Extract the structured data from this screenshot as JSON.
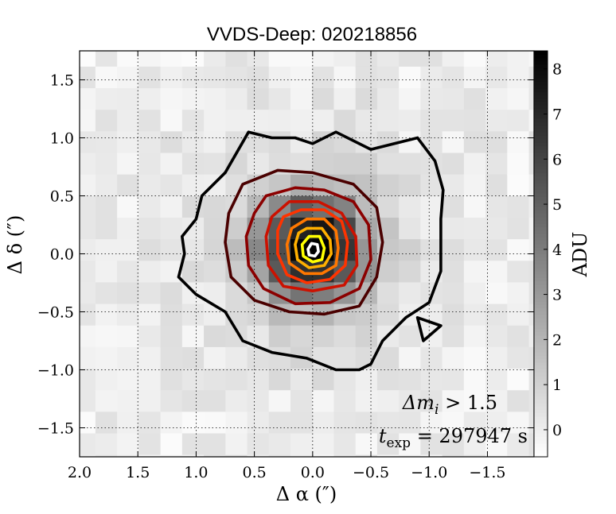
{
  "chart_data": {
    "type": "heatmap",
    "title": "VVDS-Deep: 020218856",
    "xlabel": "Δ α  (″)",
    "ylabel": "Δ δ  (″)",
    "xlim": [
      2.0,
      -1.9
    ],
    "ylim": [
      -1.75,
      1.75
    ],
    "x_ticks": [
      2.0,
      1.5,
      1.0,
      0.5,
      0.0,
      -0.5,
      -1.0,
      -1.5
    ],
    "x_tick_labels": [
      "2.0",
      "1.5",
      "1.0",
      "0.5",
      "0.0",
      "−0.5",
      "−1.0",
      "−1.5"
    ],
    "y_ticks": [
      1.5,
      1.0,
      0.5,
      0.0,
      -0.5,
      -1.0,
      -1.5
    ],
    "y_tick_labels": [
      "1.5",
      "1.0",
      "0.5",
      "0.0",
      "−0.5",
      "−1.0",
      "−1.5"
    ],
    "grid": true,
    "pixel_size_arcsec": 0.186,
    "colormap": "gray_r",
    "source_center": [
      0.0,
      0.05
    ],
    "colorbar": {
      "label": "ADU",
      "range": [
        -0.6,
        8.4
      ],
      "ticks": [
        0,
        1,
        2,
        3,
        4,
        5,
        6,
        7,
        8
      ],
      "tick_labels": [
        "0",
        "1",
        "2",
        "3",
        "4",
        "5",
        "6",
        "7",
        "8"
      ]
    },
    "contour_colors": [
      "#000000",
      "#4a0000",
      "#8b0000",
      "#cc1100",
      "#ff3300",
      "#ff7700",
      "#ffb000",
      "#ffff00",
      "#ffffff"
    ],
    "contours": [
      {
        "level": 1,
        "color": "#000000",
        "points": [
          [
            0.55,
            1.05
          ],
          [
            0.35,
            1.0
          ],
          [
            0.15,
            1.0
          ],
          [
            0.0,
            0.95
          ],
          [
            -0.2,
            1.05
          ],
          [
            -0.5,
            0.9
          ],
          [
            -0.9,
            1.0
          ],
          [
            -1.05,
            0.8
          ],
          [
            -1.12,
            0.55
          ],
          [
            -1.1,
            0.3
          ],
          [
            -1.1,
            -0.15
          ],
          [
            -1.0,
            -0.42
          ],
          [
            -0.8,
            -0.55
          ],
          [
            -0.6,
            -0.75
          ],
          [
            -0.5,
            -0.95
          ],
          [
            -0.4,
            -1.0
          ],
          [
            -0.2,
            -1.0
          ],
          [
            0.05,
            -0.9
          ],
          [
            0.35,
            -0.85
          ],
          [
            0.6,
            -0.75
          ],
          [
            0.75,
            -0.5
          ],
          [
            1.0,
            -0.35
          ],
          [
            1.15,
            -0.2
          ],
          [
            1.1,
            0.0
          ],
          [
            1.12,
            0.15
          ],
          [
            1.0,
            0.3
          ],
          [
            0.95,
            0.5
          ],
          [
            0.75,
            0.7
          ]
        ]
      },
      {
        "level": 2,
        "color": "#000000",
        "points": [
          [
            -0.9,
            -0.55
          ],
          [
            -1.1,
            -0.62
          ],
          [
            -0.95,
            -0.75
          ]
        ]
      },
      {
        "level": 3,
        "color": "#4a0000",
        "points": [
          [
            0.6,
            0.6
          ],
          [
            0.3,
            0.72
          ],
          [
            0.0,
            0.7
          ],
          [
            -0.35,
            0.6
          ],
          [
            -0.55,
            0.4
          ],
          [
            -0.6,
            0.1
          ],
          [
            -0.55,
            -0.2
          ],
          [
            -0.4,
            -0.45
          ],
          [
            -0.1,
            -0.52
          ],
          [
            0.2,
            -0.5
          ],
          [
            0.5,
            -0.4
          ],
          [
            0.7,
            -0.2
          ],
          [
            0.75,
            0.1
          ],
          [
            0.72,
            0.35
          ]
        ]
      },
      {
        "level": 4,
        "color": "#8b0000",
        "points": [
          [
            0.4,
            0.5
          ],
          [
            0.15,
            0.57
          ],
          [
            -0.1,
            0.55
          ],
          [
            -0.35,
            0.45
          ],
          [
            -0.48,
            0.25
          ],
          [
            -0.5,
            -0.05
          ],
          [
            -0.4,
            -0.3
          ],
          [
            -0.15,
            -0.42
          ],
          [
            0.15,
            -0.43
          ],
          [
            0.42,
            -0.3
          ],
          [
            0.55,
            -0.1
          ],
          [
            0.57,
            0.15
          ],
          [
            0.5,
            0.35
          ]
        ]
      },
      {
        "level": 5,
        "color": "#cc1100",
        "points": [
          [
            0.2,
            0.45
          ],
          [
            -0.05,
            0.45
          ],
          [
            -0.25,
            0.35
          ],
          [
            -0.37,
            0.15
          ],
          [
            -0.38,
            -0.1
          ],
          [
            -0.27,
            -0.27
          ],
          [
            0.0,
            -0.32
          ],
          [
            0.25,
            -0.28
          ],
          [
            0.38,
            -0.1
          ],
          [
            0.4,
            0.15
          ],
          [
            0.35,
            0.32
          ]
        ]
      },
      {
        "level": 6,
        "color": "#ff3300",
        "points": [
          [
            0.1,
            0.38
          ],
          [
            -0.1,
            0.38
          ],
          [
            -0.25,
            0.28
          ],
          [
            -0.3,
            0.1
          ],
          [
            -0.28,
            -0.1
          ],
          [
            -0.15,
            -0.22
          ],
          [
            0.05,
            -0.25
          ],
          [
            0.22,
            -0.18
          ],
          [
            0.3,
            0.0
          ],
          [
            0.3,
            0.2
          ],
          [
            0.25,
            0.32
          ]
        ]
      },
      {
        "level": 7,
        "color": "#ff7700",
        "points": [
          [
            0.05,
            0.3
          ],
          [
            -0.1,
            0.3
          ],
          [
            -0.2,
            0.2
          ],
          [
            -0.22,
            0.05
          ],
          [
            -0.2,
            -0.1
          ],
          [
            -0.08,
            -0.17
          ],
          [
            0.07,
            -0.17
          ],
          [
            0.2,
            -0.08
          ],
          [
            0.22,
            0.08
          ],
          [
            0.18,
            0.22
          ]
        ]
      },
      {
        "level": 8,
        "color": "#ffb000",
        "points": [
          [
            0.05,
            0.22
          ],
          [
            -0.08,
            0.22
          ],
          [
            -0.15,
            0.12
          ],
          [
            -0.16,
            0.0
          ],
          [
            -0.1,
            -0.1
          ],
          [
            0.03,
            -0.12
          ],
          [
            0.13,
            -0.05
          ],
          [
            0.15,
            0.08
          ],
          [
            0.12,
            0.18
          ]
        ]
      },
      {
        "level": 9,
        "color": "#ffff00",
        "points": [
          [
            0.03,
            0.15
          ],
          [
            -0.06,
            0.15
          ],
          [
            -0.1,
            0.05
          ],
          [
            -0.08,
            -0.05
          ],
          [
            0.0,
            -0.07
          ],
          [
            0.08,
            -0.02
          ],
          [
            0.09,
            0.08
          ]
        ]
      },
      {
        "level": 10,
        "color": "#ffffff",
        "points": [
          [
            0.01,
            0.09
          ],
          [
            -0.04,
            0.08
          ],
          [
            -0.05,
            0.02
          ],
          [
            -0.02,
            -0.02
          ],
          [
            0.03,
            -0.01
          ],
          [
            0.04,
            0.04
          ]
        ]
      }
    ]
  },
  "annotations": {
    "delta_m": "Δm",
    "delta_m_sub": "i",
    "delta_m_rest": " > 1.5",
    "texp": "t",
    "texp_sub": "exp",
    "texp_rest": " = 297947 s"
  }
}
